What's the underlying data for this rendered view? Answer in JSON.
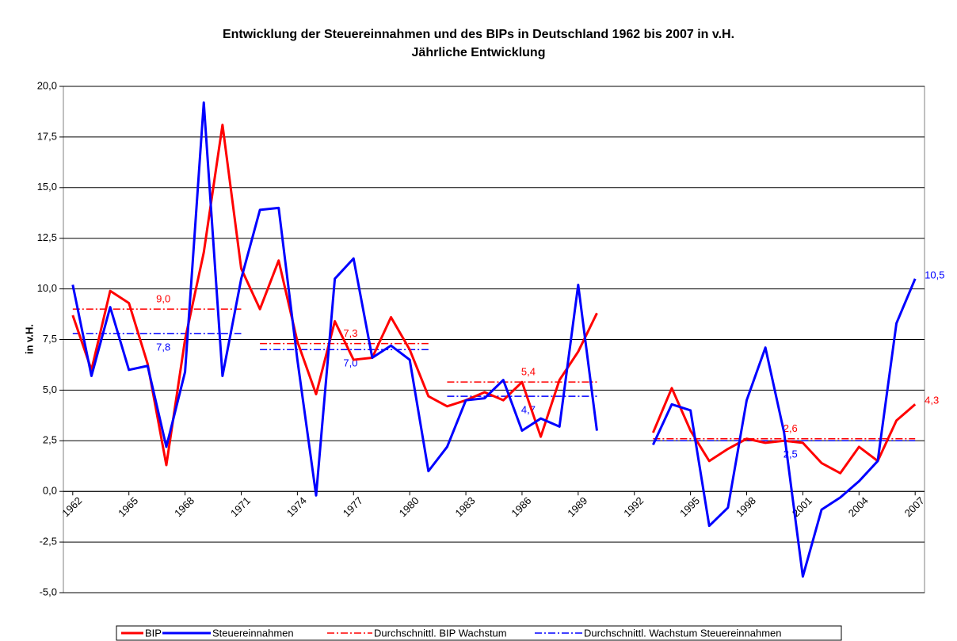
{
  "chart_data": {
    "type": "line",
    "title": "Entwicklung der Steuereinnahmen und des BIPs in Deutschland 1962 bis 2007 in v.H.",
    "subtitle": "Jährliche Entwicklung",
    "y_label": "in v.H.",
    "x": [
      1962,
      1963,
      1964,
      1965,
      1966,
      1967,
      1968,
      1969,
      1970,
      1971,
      1972,
      1973,
      1974,
      1975,
      1976,
      1977,
      1978,
      1979,
      1980,
      1981,
      1982,
      1983,
      1984,
      1985,
      1986,
      1987,
      1988,
      1989,
      1990,
      1991,
      1992,
      1993,
      1994,
      1995,
      1996,
      1997,
      1998,
      1999,
      2000,
      2001,
      2002,
      2003,
      2004,
      2005,
      2006,
      2007
    ],
    "xlim": [
      1961.5,
      2007.5
    ],
    "xticks": [
      1962,
      1965,
      1968,
      1971,
      1974,
      1977,
      1980,
      1983,
      1986,
      1989,
      1992,
      1995,
      1998,
      2001,
      2004,
      2007
    ],
    "ylim": [
      -5,
      20
    ],
    "yticks": [
      {
        "value": -5,
        "label": "-5,0"
      },
      {
        "value": -2.5,
        "label": "-2,5"
      },
      {
        "value": 0,
        "label": "0,0"
      },
      {
        "value": 2.5,
        "label": "2,5"
      },
      {
        "value": 5,
        "label": "5,0"
      },
      {
        "value": 7.5,
        "label": "7,5"
      },
      {
        "value": 10,
        "label": "10,0"
      },
      {
        "value": 12.5,
        "label": "12,5"
      },
      {
        "value": 15,
        "label": "15,0"
      },
      {
        "value": 17.5,
        "label": "17,5"
      },
      {
        "value": 20,
        "label": "20,0"
      }
    ],
    "grid": true,
    "series": [
      {
        "name": "BIP",
        "color": "#ff0000",
        "values": [
          8.7,
          6.0,
          9.9,
          9.3,
          6.3,
          1.3,
          7.5,
          11.8,
          18.1,
          11.0,
          9.0,
          11.4,
          7.4,
          4.8,
          8.4,
          6.5,
          6.6,
          8.6,
          7.0,
          4.7,
          4.2,
          4.5,
          4.9,
          4.5,
          5.4,
          2.7,
          5.5,
          6.9,
          8.8,
          null,
          null,
          2.9,
          5.1,
          3.0,
          1.5,
          2.1,
          2.6,
          2.4,
          2.5,
          2.4,
          1.4,
          0.9,
          2.2,
          1.5,
          3.5,
          4.3
        ],
        "end_label": "4,3"
      },
      {
        "name": "Steuereinnahmen",
        "color": "#0000ff",
        "values": [
          10.2,
          5.7,
          9.1,
          6.0,
          6.2,
          2.2,
          5.9,
          19.2,
          5.7,
          10.5,
          13.9,
          14.0,
          6.5,
          -0.2,
          10.5,
          11.5,
          6.6,
          7.2,
          6.5,
          1.0,
          2.2,
          4.5,
          4.6,
          5.5,
          3.0,
          3.6,
          3.2,
          10.2,
          3.0,
          null,
          null,
          2.3,
          4.3,
          4.0,
          -1.7,
          -0.8,
          4.5,
          7.1,
          2.9,
          -4.2,
          -0.9,
          -0.3,
          0.5,
          1.5,
          8.3,
          10.5
        ],
        "end_label": "10,5"
      }
    ],
    "averages": [
      {
        "name": "Durchschnittl. BIP Wachstum",
        "color": "#ff0000",
        "segments": [
          {
            "from": 1962,
            "to": 1971,
            "value": 9.0,
            "label": "9,0"
          },
          {
            "from": 1972,
            "to": 1981,
            "value": 7.3,
            "label": "7,3"
          },
          {
            "from": 1982,
            "to": 1990,
            "value": 5.4,
            "label": "5,4"
          },
          {
            "from": 1993,
            "to": 2007,
            "value": 2.6,
            "label": "2,6"
          }
        ]
      },
      {
        "name": "Durchschnittl. Wachstum Steuereinnahmen",
        "color": "#0000ff",
        "segments": [
          {
            "from": 1962,
            "to": 1971,
            "value": 7.8,
            "label": "7,8"
          },
          {
            "from": 1972,
            "to": 1981,
            "value": 7.0,
            "label": "7,0"
          },
          {
            "from": 1982,
            "to": 1990,
            "value": 4.7,
            "label": "4,7"
          },
          {
            "from": 1993,
            "to": 2007,
            "value": 2.5,
            "label": "2,5"
          }
        ]
      }
    ]
  }
}
